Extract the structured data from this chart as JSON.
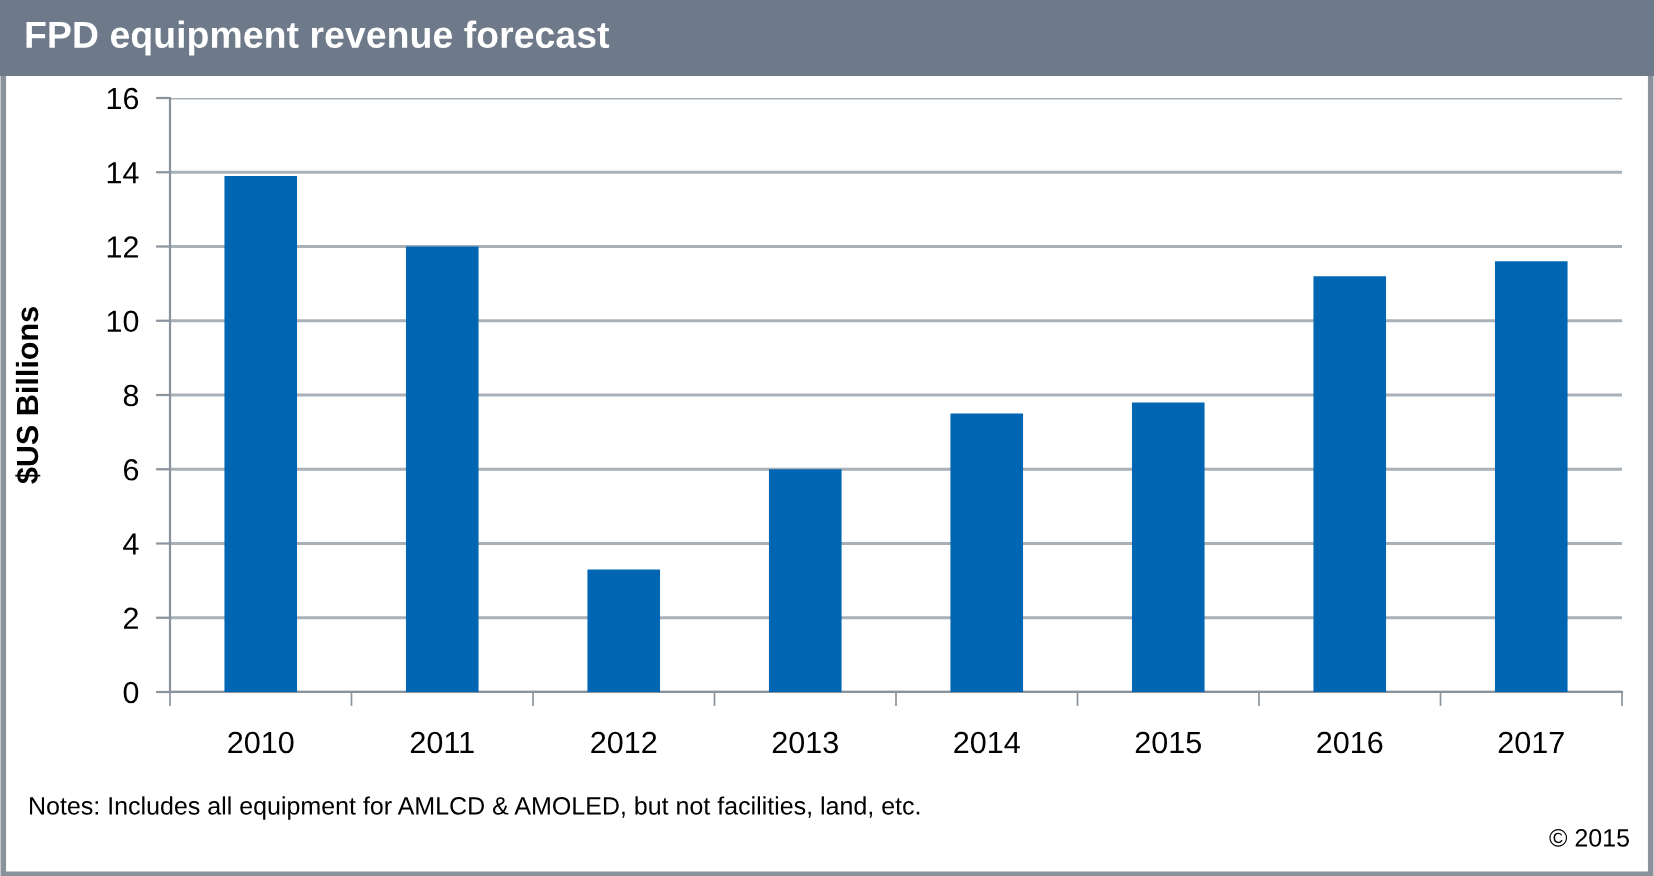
{
  "chart_data": {
    "type": "bar",
    "title": "FPD equipment revenue forecast",
    "ylabel": "$US Billions",
    "categories": [
      "2010",
      "2011",
      "2012",
      "2013",
      "2014",
      "2015",
      "2016",
      "2017"
    ],
    "values": [
      13.9,
      12.0,
      3.3,
      6.0,
      7.5,
      7.8,
      11.2,
      11.6
    ],
    "color": "#0066b3",
    "ylim": [
      0,
      16
    ],
    "yticks": [
      0,
      2,
      4,
      6,
      8,
      10,
      12,
      14,
      16
    ],
    "grid": "y",
    "annotations": [
      "Notes: Includes all equipment for AMLCD & AMOLED, but not facilities, land, etc.",
      "© 2015"
    ]
  }
}
